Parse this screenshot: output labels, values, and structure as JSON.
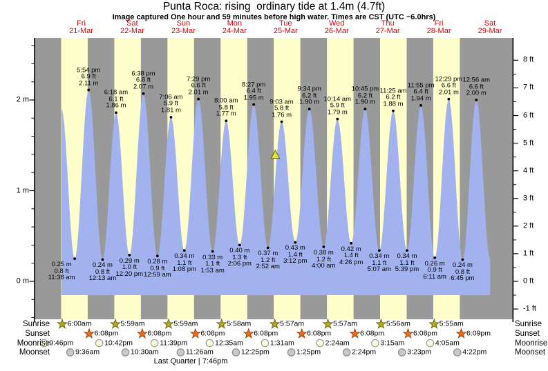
{
  "title": "Punta Roca: rising  ordinary tide at 1.4m (4.7ft)",
  "subtitle": "Image captured One hour and 59 minutes before high water. Times are CST (UTC −6.0hrs)",
  "colors": {
    "night_band": "#999999",
    "day_band": "#ffffcc",
    "tide_fill": "#a2b2ef",
    "day_label": "#e00000",
    "marker_fill": "#e6e03c",
    "marker_stroke": "#5f5c00",
    "sunrise_star_fill": "#b5aa28",
    "sunrise_star_stroke": "#6f6a10",
    "sunset_star_fill": "#e2731f",
    "sunset_star_stroke": "#a33c0a",
    "moonrise_circle_fill": "#ffffdd",
    "moonrise_circle_stroke": "#999999",
    "moonset_circle_fill": "#c9c9c9",
    "moonset_circle_stroke": "#8a8a8a"
  },
  "days": [
    {
      "dow": "Fri",
      "date": "21-Mar"
    },
    {
      "dow": "Sat",
      "date": "22-Mar"
    },
    {
      "dow": "Sun",
      "date": "23-Mar"
    },
    {
      "dow": "Mon",
      "date": "24-Mar"
    },
    {
      "dow": "Tue",
      "date": "25-Mar"
    },
    {
      "dow": "Wed",
      "date": "26-Mar"
    },
    {
      "dow": "Thu",
      "date": "27-Mar"
    },
    {
      "dow": "Fri",
      "date": "28-Mar"
    },
    {
      "dow": "Sat",
      "date": "29-Mar"
    }
  ],
  "chart_data": {
    "type": "area",
    "title": "Punta Roca tide curve, 21-Mar to 29-Mar",
    "current_marker": {
      "height_m": 1.4,
      "height_ft": 4.7,
      "state": "rising"
    },
    "y_axis": {
      "left_unit": "m",
      "right_unit": "ft",
      "left_ticks": [
        "0 m",
        "1 m",
        "2 m"
      ],
      "right_ticks": [
        "-1 ft",
        "0 ft",
        "1 ft",
        "2 ft",
        "3 ft",
        "4 ft",
        "5 ft",
        "6 ft",
        "7 ft",
        "8 ft"
      ]
    },
    "tides": [
      {
        "type": "low",
        "day": 21,
        "time": "11:38 am",
        "height_m": 0.25,
        "height_ft": 0.8
      },
      {
        "type": "high",
        "day": 21,
        "time": "5:54 pm",
        "height_m": 2.11,
        "height_ft": 6.9
      },
      {
        "type": "low",
        "day": 22,
        "time": "12:13 am",
        "height_m": 0.24,
        "height_ft": 0.8
      },
      {
        "type": "high",
        "day": 22,
        "time": "6:18 am",
        "height_m": 1.86,
        "height_ft": 6.1
      },
      {
        "type": "low",
        "day": 22,
        "time": "12:20 pm",
        "height_m": 0.29,
        "height_ft": 1.0
      },
      {
        "type": "high",
        "day": 22,
        "time": "6:38 pm",
        "height_m": 2.07,
        "height_ft": 6.8
      },
      {
        "type": "low",
        "day": 23,
        "time": "12:59 am",
        "height_m": 0.28,
        "height_ft": 0.9
      },
      {
        "type": "high",
        "day": 23,
        "time": "7:06 am",
        "height_m": 1.81,
        "height_ft": 5.9
      },
      {
        "type": "low",
        "day": 23,
        "time": "1:08 pm",
        "height_m": 0.34,
        "height_ft": 1.1
      },
      {
        "type": "high",
        "day": 23,
        "time": "7:29 pm",
        "height_m": 2.01,
        "height_ft": 6.6
      },
      {
        "type": "low",
        "day": 24,
        "time": "1:53 am",
        "height_m": 0.33,
        "height_ft": 1.1
      },
      {
        "type": "high",
        "day": 24,
        "time": "8:00 am",
        "height_m": 1.77,
        "height_ft": 5.8
      },
      {
        "type": "low",
        "day": 24,
        "time": "2:06 pm",
        "height_m": 0.4,
        "height_ft": 1.3
      },
      {
        "type": "high",
        "day": 24,
        "time": "8:27 pm",
        "height_m": 1.95,
        "height_ft": 6.4
      },
      {
        "type": "low",
        "day": 25,
        "time": "2:52 am",
        "height_m": 0.37,
        "height_ft": 1.2
      },
      {
        "type": "high",
        "day": 25,
        "time": "9:03 am",
        "height_m": 1.76,
        "height_ft": 5.8
      },
      {
        "type": "low",
        "day": 25,
        "time": "3:12 pm",
        "height_m": 0.43,
        "height_ft": 1.4
      },
      {
        "type": "high",
        "day": 25,
        "time": "9:34 pm",
        "height_m": 1.9,
        "height_ft": 6.2
      },
      {
        "type": "low",
        "day": 26,
        "time": "4:00 am",
        "height_m": 0.38,
        "height_ft": 1.2
      },
      {
        "type": "high",
        "day": 26,
        "time": "10:14 am",
        "height_m": 1.79,
        "height_ft": 5.9
      },
      {
        "type": "low",
        "day": 26,
        "time": "4:26 pm",
        "height_m": 0.42,
        "height_ft": 1.4
      },
      {
        "type": "high",
        "day": 26,
        "time": "10:45 pm",
        "height_m": 1.9,
        "height_ft": 6.2
      },
      {
        "type": "low",
        "day": 27,
        "time": "5:07 am",
        "height_m": 0.34,
        "height_ft": 1.1
      },
      {
        "type": "high",
        "day": 27,
        "time": "11:25 am",
        "height_m": 1.88,
        "height_ft": 6.2
      },
      {
        "type": "low",
        "day": 27,
        "time": "5:39 pm",
        "height_m": 0.34,
        "height_ft": 1.1
      },
      {
        "type": "high",
        "day": 27,
        "time": "11:55 pm",
        "height_m": 1.94,
        "height_ft": 6.4
      },
      {
        "type": "low",
        "day": 28,
        "time": "6:11 am",
        "height_m": 0.26,
        "height_ft": 0.9
      },
      {
        "type": "high",
        "day": 28,
        "time": "12:29 pm",
        "height_m": 2.01,
        "height_ft": 6.6
      },
      {
        "type": "low",
        "day": 28,
        "time": "6:45 pm",
        "height_m": 0.24,
        "height_ft": 0.8
      },
      {
        "type": "high",
        "day": 29,
        "time": "12:56 am",
        "height_m": 2.0,
        "height_ft": 6.6
      }
    ],
    "curve_edge": {
      "leading": {
        "day": 21,
        "time": "5:40 am",
        "height_m": 1.9
      },
      "trailing": {
        "day": 29,
        "time": "7:10 am",
        "height_m": 0.25
      }
    }
  },
  "sun_moon": {
    "rows": [
      {
        "label": "Sunrise",
        "icon": "sunrise-icon",
        "entries": [
          {
            "time": "6:00am",
            "day": 21
          },
          {
            "time": "5:59am",
            "day": 22
          },
          {
            "time": "5:59am",
            "day": 23
          },
          {
            "time": "5:58am",
            "day": 24
          },
          {
            "time": "5:57am",
            "day": 25
          },
          {
            "time": "5:57am",
            "day": 26
          },
          {
            "time": "5:56am",
            "day": 27
          },
          {
            "time": "5:55am",
            "day": 28
          }
        ]
      },
      {
        "label": "Sunset",
        "icon": "sunset-icon",
        "entries": [
          {
            "time": "6:08pm",
            "day": 21
          },
          {
            "time": "6:08pm",
            "day": 22
          },
          {
            "time": "6:08pm",
            "day": 23
          },
          {
            "time": "6:08pm",
            "day": 24
          },
          {
            "time": "6:08pm",
            "day": 25
          },
          {
            "time": "6:08pm",
            "day": 26
          },
          {
            "time": "6:08pm",
            "day": 27
          },
          {
            "time": "6:09pm",
            "day": 28
          }
        ]
      },
      {
        "label": "Moonrise",
        "icon": "moonrise-icon",
        "entries": [
          {
            "time": "9:46pm",
            "day": 20
          },
          {
            "time": "10:42pm",
            "day": 21
          },
          {
            "time": "11:39pm",
            "day": 22
          },
          {
            "time": "12:35am",
            "day": 24
          },
          {
            "time": "1:31am",
            "day": 25
          },
          {
            "time": "2:24am",
            "day": 26
          },
          {
            "time": "3:15am",
            "day": 27
          },
          {
            "time": "4:05am",
            "day": 28
          }
        ]
      },
      {
        "label": "Moonset",
        "icon": "moonset-icon",
        "entries": [
          {
            "time": "9:36am",
            "day": 21
          },
          {
            "time": "10:30am",
            "day": 22
          },
          {
            "time": "11:26am",
            "day": 23
          },
          {
            "time": "12:25pm",
            "day": 24
          },
          {
            "time": "1:25pm",
            "day": 25
          },
          {
            "time": "2:24pm",
            "day": 26
          },
          {
            "time": "3:23pm",
            "day": 27
          },
          {
            "time": "4:22pm",
            "day": 28
          }
        ]
      }
    ],
    "moon_phase": "Last Quarter | 7:46pm"
  }
}
